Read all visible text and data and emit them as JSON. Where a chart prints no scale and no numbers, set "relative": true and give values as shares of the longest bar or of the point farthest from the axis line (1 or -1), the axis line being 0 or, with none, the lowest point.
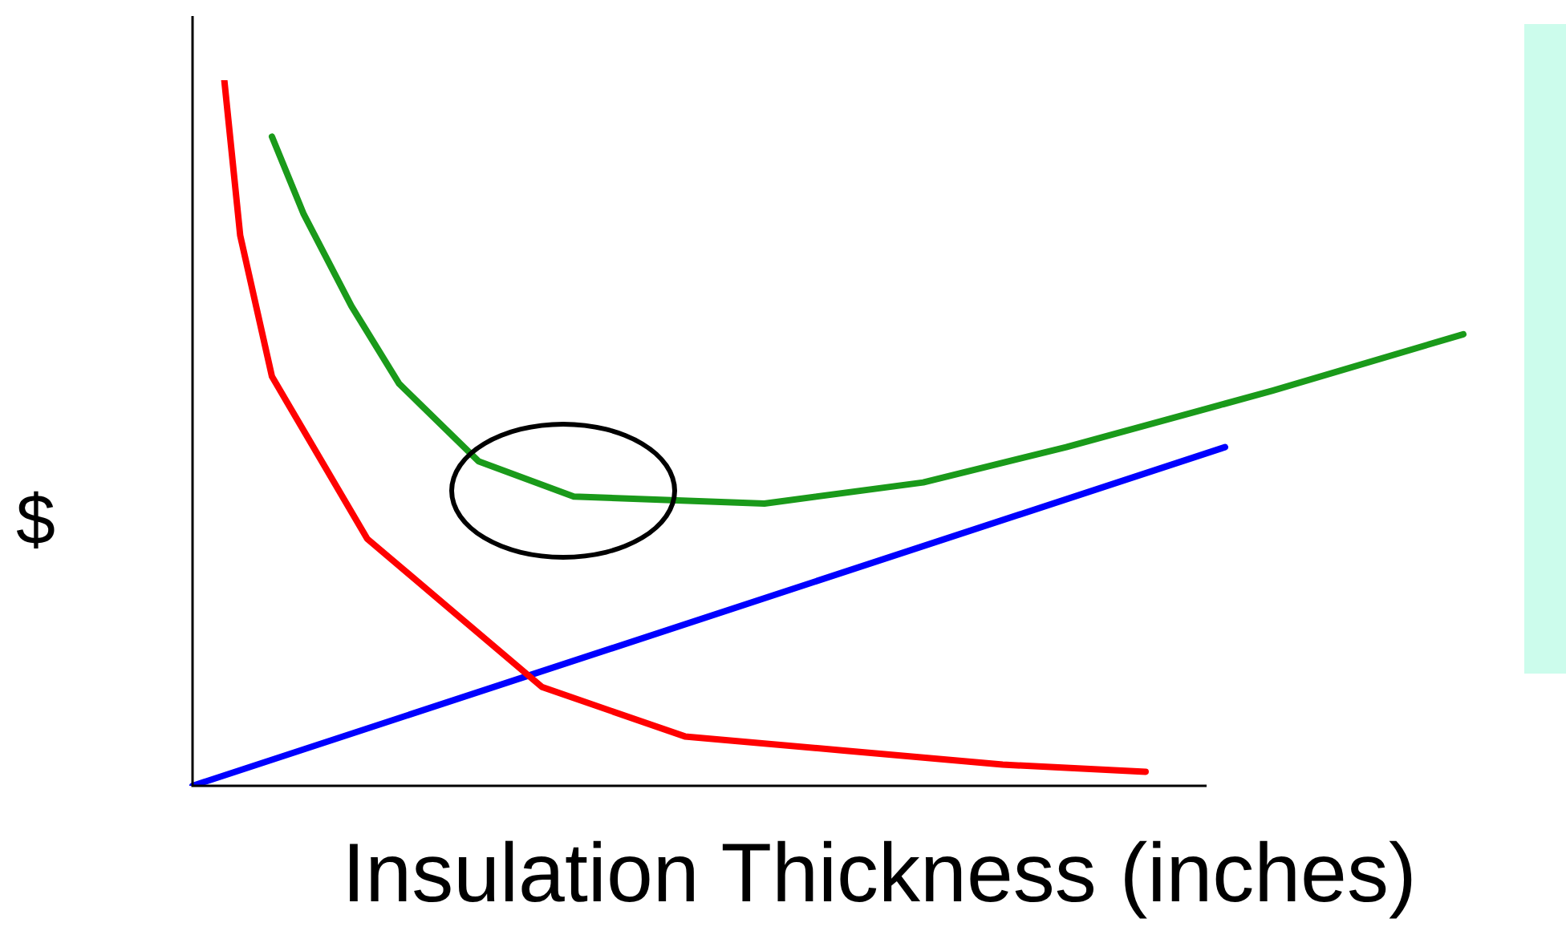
{
  "chart_data": {
    "type": "line",
    "xlabel": "Insulation Thickness (inches)",
    "ylabel": "$",
    "relative": true,
    "legend": false,
    "marker": "none",
    "line_style": "solid",
    "categories": [
      null,
      null,
      null,
      null,
      null,
      null,
      null,
      null,
      null,
      null,
      null,
      null,
      null,
      null,
      null,
      null,
      null,
      null,
      null,
      null,
      null,
      null,
      null,
      null,
      null,
      null,
      null,
      null,
      null,
      null,
      null,
      null,
      null,
      null,
      null,
      null,
      null,
      null,
      null,
      null,
      null,
      null,
      null,
      null,
      null,
      null,
      null,
      null,
      null,
      null,
      null,
      null,
      null,
      null,
      null,
      null,
      null,
      null,
      null,
      null,
      null,
      null,
      null,
      null,
      null,
      null,
      null,
      null,
      null,
      null,
      null,
      null,
      null,
      null,
      null,
      null,
      null,
      null,
      null,
      null,
      null
    ],
    "series": [
      {
        "color": "#ff0000",
        "values": [
          null,
          null,
          1.0,
          0.78,
          null,
          0.58,
          null,
          null,
          null,
          null,
          null,
          0.35,
          null,
          null,
          null,
          null,
          null,
          null,
          null,
          null,
          null,
          null,
          0.14,
          null,
          null,
          null,
          null,
          null,
          null,
          null,
          null,
          0.07,
          null,
          null,
          null,
          null,
          null,
          null,
          null,
          null,
          null,
          0.05,
          null,
          null,
          null,
          null,
          null,
          null,
          null,
          null,
          null,
          0.03,
          null,
          null,
          null,
          null,
          null,
          null,
          null,
          null,
          0.02,
          null,
          null,
          null,
          null,
          null,
          null,
          null,
          null,
          null,
          null,
          null,
          null,
          null,
          null,
          null,
          null,
          null,
          null,
          null,
          null
        ]
      },
      {
        "color": "#1a9a1a",
        "values": [
          null,
          null,
          null,
          null,
          null,
          0.92,
          null,
          0.81,
          null,
          null,
          0.68,
          null,
          null,
          0.57,
          null,
          null,
          null,
          null,
          0.46,
          null,
          null,
          null,
          null,
          null,
          0.41,
          null,
          null,
          null,
          null,
          null,
          null,
          null,
          null,
          null,
          null,
          null,
          0.4,
          null,
          null,
          null,
          null,
          null,
          null,
          null,
          null,
          null,
          0.43,
          null,
          null,
          null,
          null,
          null,
          null,
          null,
          null,
          0.48,
          null,
          null,
          null,
          null,
          null,
          null,
          null,
          null,
          null,
          null,
          null,
          null,
          0.56,
          null,
          null,
          null,
          null,
          null,
          null,
          null,
          null,
          null,
          null,
          null,
          0.64
        ]
      },
      {
        "color": "#0000ff",
        "values": [
          0,
          null,
          null,
          null,
          null,
          null,
          null,
          null,
          null,
          null,
          null,
          null,
          null,
          null,
          null,
          null,
          null,
          null,
          null,
          null,
          null,
          null,
          null,
          null,
          null,
          null,
          null,
          null,
          null,
          null,
          null,
          null,
          null,
          null,
          null,
          null,
          null,
          null,
          null,
          null,
          null,
          null,
          null,
          null,
          null,
          null,
          null,
          null,
          null,
          null,
          null,
          null,
          null,
          null,
          null,
          null,
          null,
          null,
          null,
          null,
          null,
          null,
          null,
          null,
          null,
          0.48,
          null,
          null,
          null,
          null,
          null,
          null,
          null,
          null,
          null,
          null,
          null,
          null,
          null,
          null,
          null
        ]
      }
    ]
  }
}
